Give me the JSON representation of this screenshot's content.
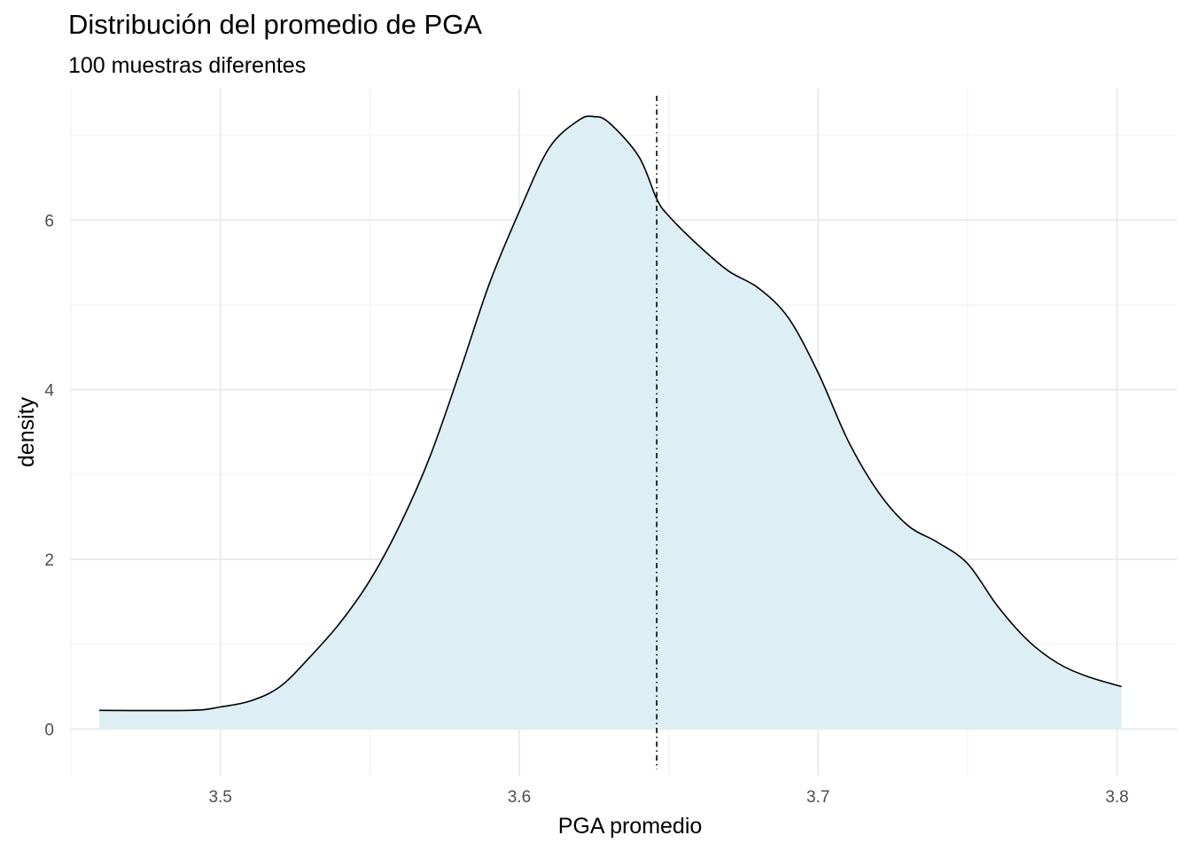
{
  "chart_data": {
    "type": "area",
    "title": "Distribución del promedio de PGA",
    "subtitle": "100 muestras diferentes",
    "xlabel": "PGA promedio",
    "ylabel": "density",
    "xlim": [
      3.45,
      3.82
    ],
    "ylim": [
      -0.55,
      7.55
    ],
    "x_ticks": [
      "3.5",
      "3.6",
      "3.7",
      "3.8"
    ],
    "y_ticks": [
      "0",
      "2",
      "4",
      "6"
    ],
    "grid": true,
    "fill_color": "#ddeef5",
    "line_color": "#000000",
    "vline": {
      "x": 3.646,
      "style": "dotdash"
    },
    "series": [
      {
        "x": [
          3.4595,
          3.49,
          3.5,
          3.51,
          3.52,
          3.53,
          3.54,
          3.55,
          3.56,
          3.57,
          3.58,
          3.59,
          3.6,
          3.61,
          3.62,
          3.625,
          3.63,
          3.64,
          3.646,
          3.65,
          3.66,
          3.67,
          3.68,
          3.69,
          3.7,
          3.71,
          3.72,
          3.73,
          3.74,
          3.75,
          3.76,
          3.77,
          3.78,
          3.79,
          3.8015
        ],
        "y": [
          0.22,
          0.22,
          0.26,
          0.33,
          0.5,
          0.85,
          1.25,
          1.75,
          2.4,
          3.2,
          4.2,
          5.25,
          6.1,
          6.85,
          7.18,
          7.22,
          7.15,
          6.75,
          6.25,
          6.05,
          5.7,
          5.4,
          5.2,
          4.85,
          4.2,
          3.4,
          2.8,
          2.4,
          2.2,
          1.95,
          1.45,
          1.05,
          0.78,
          0.62,
          0.5
        ]
      }
    ]
  }
}
